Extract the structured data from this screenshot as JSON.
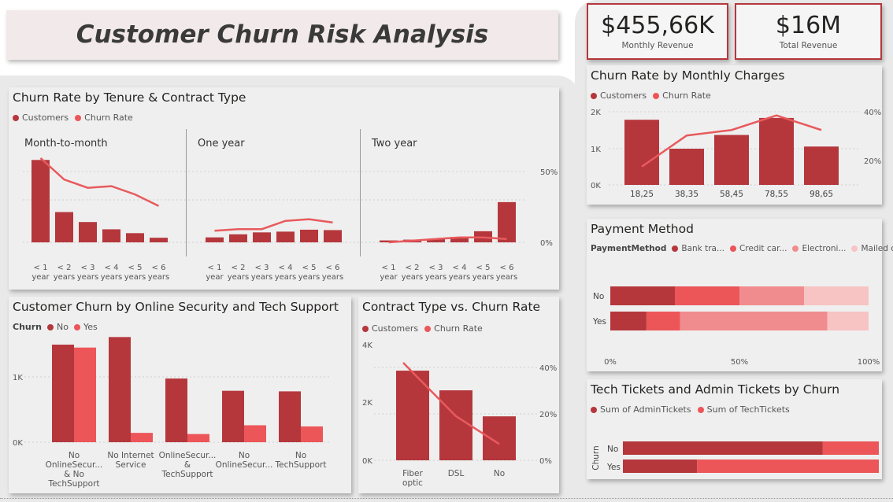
{
  "header": {
    "title": "Customer Churn Risk Analysis"
  },
  "kpis": [
    {
      "value": "$455,66K",
      "label": "Monthly Revenue"
    },
    {
      "value": "$16M",
      "label": "Total Revenue"
    }
  ],
  "colors": {
    "dark": "#b5373c",
    "light": "#ec5659",
    "pay1": "#b5373c",
    "pay2": "#ec5659",
    "pay3": "#f18c8e",
    "pay4": "#f8c3c3",
    "line": "#e85a5d"
  },
  "tenure": {
    "title": "Churn Rate by Tenure & Contract Type",
    "legend": [
      "Customers",
      "Churn Rate"
    ],
    "right_ticks": [
      "50%",
      "0%"
    ],
    "chart_data": {
      "type": "bar",
      "categories": [
        [
          "< 1",
          "year"
        ],
        [
          "< 2",
          "years"
        ],
        [
          "< 3",
          "years"
        ],
        [
          "< 4",
          "years"
        ],
        [
          "< 5",
          "years"
        ],
        [
          "< 6",
          "years"
        ]
      ],
      "panels": [
        {
          "name": "Month-to-month",
          "customers": [
            2150,
            790,
            530,
            340,
            240,
            120
          ],
          "churn_rate": [
            51,
            38,
            33,
            34,
            29,
            22
          ]
        },
        {
          "name": "One year",
          "customers": [
            130,
            210,
            260,
            280,
            330,
            320
          ],
          "churn_rate": [
            7,
            8,
            8,
            13,
            14,
            12
          ]
        },
        {
          "name": "Two year",
          "customers": [
            50,
            70,
            90,
            140,
            290,
            1050
          ],
          "churn_rate": [
            0,
            1,
            2,
            3,
            3,
            2
          ]
        }
      ],
      "ylim_rate": [
        0,
        50
      ]
    }
  },
  "monthly": {
    "title": "Churn Rate by Monthly Charges",
    "legend": [
      "Customers",
      "Churn Rate"
    ],
    "left_ticks": [
      "2K",
      "1K",
      "0K"
    ],
    "right_ticks": [
      "40%",
      "20%"
    ],
    "chart_data": {
      "type": "bar",
      "categories": [
        "18,25",
        "38,35",
        "58,45",
        "78,55",
        "98,65"
      ],
      "customers": [
        1800,
        1000,
        1380,
        1850,
        1060
      ],
      "churn_rate": [
        10,
        27,
        30,
        38,
        30
      ],
      "ylim": [
        0,
        2000
      ],
      "ylim_rate": [
        0,
        40
      ]
    }
  },
  "payment": {
    "title": "Payment Method",
    "legend_title": "PaymentMethod",
    "legend": [
      "Bank tra...",
      "Credit car...",
      "Electroni...",
      "Mailed ch..."
    ],
    "x_ticks": [
      "0%",
      "50%",
      "100%"
    ],
    "chart_data": {
      "type": "bar",
      "orientation": "horizontal-stacked-100",
      "rows": [
        {
          "label": "No",
          "values": [
            25,
            25,
            25,
            25
          ]
        },
        {
          "label": "Yes",
          "values": [
            14,
            13,
            57,
            16
          ]
        }
      ]
    }
  },
  "security": {
    "title": "Customer Churn by Online Security and Tech Support",
    "legend_title": "Churn",
    "legend": [
      "No",
      "Yes"
    ],
    "left_ticks": [
      "1K",
      "0K"
    ],
    "chart_data": {
      "type": "bar",
      "categories": [
        [
          "No",
          "OnlineSecur...",
          "& No",
          "TechSupport"
        ],
        [
          "No Internet",
          "Service"
        ],
        [
          "OnlineSecur...",
          "&",
          "TechSupport"
        ],
        [
          "No",
          "OnlineSecur..."
        ],
        [
          "No",
          "TechSupport"
        ]
      ],
      "no": [
        1670,
        1800,
        1090,
        880,
        870
      ],
      "yes": [
        1620,
        160,
        140,
        290,
        270
      ],
      "ylim": [
        0,
        2000
      ]
    }
  },
  "contract": {
    "title": "Contract Type vs. Churn Rate",
    "legend": [
      "Customers",
      "Churn Rate"
    ],
    "left_ticks": [
      "4K",
      "2K",
      "0K"
    ],
    "right_ticks": [
      "40%",
      "20%",
      "0%"
    ],
    "chart_data": {
      "type": "bar",
      "categories": [
        [
          "Fiber",
          "optic"
        ],
        [
          "DSL"
        ],
        [
          "No"
        ]
      ],
      "customers": [
        3100,
        2420,
        1520
      ],
      "churn_rate": [
        42,
        19,
        7
      ],
      "ylim": [
        0,
        4000
      ],
      "ylim_rate": [
        0,
        40
      ]
    }
  },
  "tickets": {
    "title": "Tech Tickets and Admin Tickets by Churn",
    "legend": [
      "Sum of AdminTickets",
      "Sum of TechTickets"
    ],
    "axis_label": "Churn",
    "chart_data": {
      "type": "bar",
      "orientation": "horizontal-stacked",
      "rows": [
        {
          "label": "No",
          "admin": 78,
          "tech": 22
        },
        {
          "label": "Yes",
          "admin": 29,
          "tech": 71
        }
      ]
    }
  }
}
